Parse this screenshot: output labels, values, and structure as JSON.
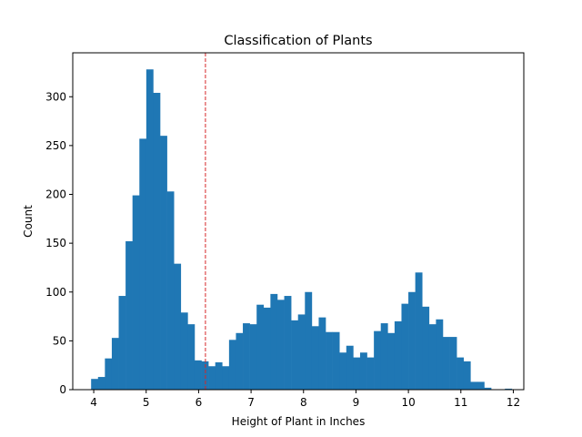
{
  "chart_data": {
    "type": "bar",
    "title": "Classification of Plants",
    "xlabel": "Height of Plant in Inches",
    "ylabel": "Count",
    "xlim": [
      3.6,
      12.2
    ],
    "ylim": [
      0,
      345
    ],
    "xticks": [
      4,
      5,
      6,
      7,
      8,
      9,
      10,
      11,
      12
    ],
    "yticks": [
      0,
      50,
      100,
      150,
      200,
      250,
      300
    ],
    "bin_start": 3.95,
    "bin_width": 0.1315,
    "counts": [
      11,
      13,
      32,
      53,
      96,
      152,
      199,
      257,
      328,
      304,
      260,
      203,
      129,
      79,
      67,
      30,
      29,
      24,
      28,
      24,
      51,
      58,
      68,
      67,
      87,
      84,
      98,
      92,
      96,
      71,
      77,
      100,
      65,
      74,
      59,
      59,
      38,
      45,
      33,
      38,
      33,
      60,
      68,
      58,
      70,
      88,
      100,
      120,
      85,
      67,
      72,
      54,
      54,
      33,
      29,
      8,
      8,
      2,
      0,
      0,
      1,
      0
    ],
    "threshold_line": {
      "x": 6.13,
      "color": "#d62728",
      "style": "dashed"
    },
    "bar_color": "#1f77b4"
  }
}
